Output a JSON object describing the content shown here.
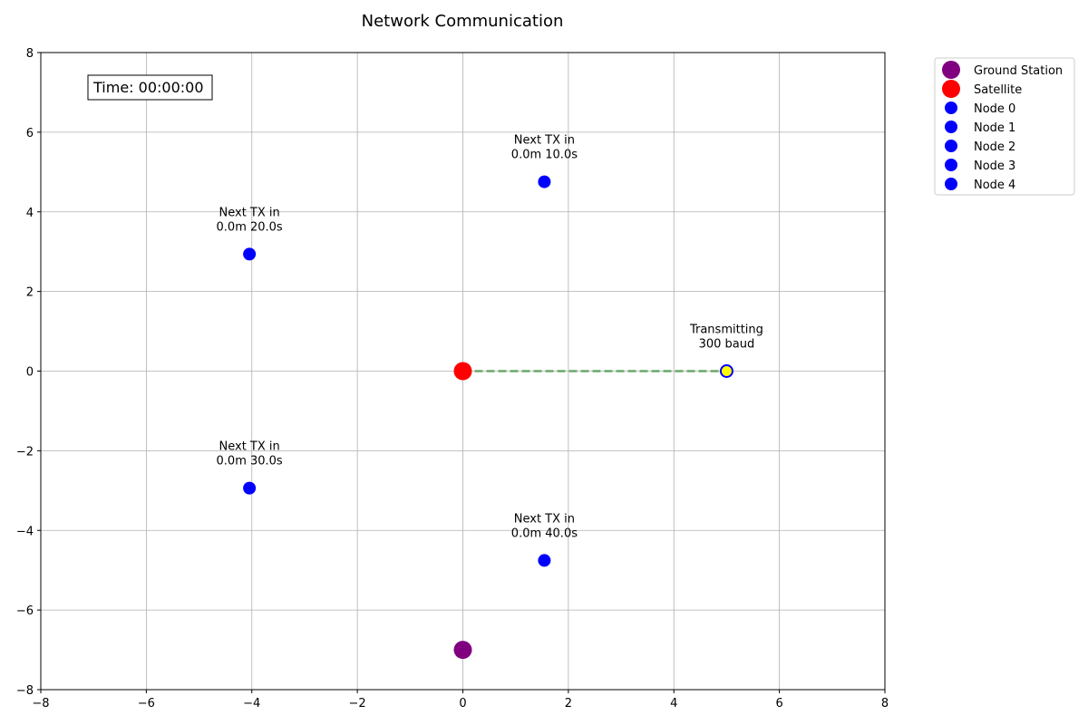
{
  "chart_data": {
    "type": "scatter",
    "title": "Network Communication",
    "xlabel": "",
    "ylabel": "",
    "xlim": [
      -8,
      8
    ],
    "ylim": [
      -8,
      8
    ],
    "xticks": [
      -8,
      -6,
      -4,
      -2,
      0,
      2,
      4,
      6,
      8
    ],
    "yticks": [
      -8,
      -6,
      -4,
      -2,
      0,
      2,
      4,
      6,
      8
    ],
    "grid": true,
    "time_label": "Time: 00:00:00",
    "legend_position": "outside-top-right",
    "series": [
      {
        "name": "Ground Station",
        "color": "#800080",
        "x": [
          0
        ],
        "y": [
          -7
        ]
      },
      {
        "name": "Satellite",
        "color": "#ff0000",
        "x": [
          0
        ],
        "y": [
          0
        ]
      },
      {
        "name": "Node 0",
        "color": "#0000ff",
        "x": [
          5
        ],
        "y": [
          0
        ]
      },
      {
        "name": "Node 1",
        "color": "#0000ff",
        "x": [
          1.545
        ],
        "y": [
          4.755
        ]
      },
      {
        "name": "Node 2",
        "color": "#0000ff",
        "x": [
          -4.045
        ],
        "y": [
          2.939
        ]
      },
      {
        "name": "Node 3",
        "color": "#0000ff",
        "x": [
          -4.045
        ],
        "y": [
          -2.939
        ]
      },
      {
        "name": "Node 4",
        "color": "#0000ff",
        "x": [
          1.545
        ],
        "y": [
          -4.755
        ]
      }
    ],
    "transmitting_node_color": "#ffff00",
    "link": {
      "from": [
        0,
        0
      ],
      "to": [
        5,
        0
      ],
      "color": "#6aa86a",
      "style": "dashed"
    },
    "annotations": [
      {
        "lines": [
          "Transmitting",
          "300 baud"
        ],
        "x": 5,
        "y": 0
      },
      {
        "lines": [
          "Next TX in",
          "0.0m 10.0s"
        ],
        "x": 1.545,
        "y": 4.755
      },
      {
        "lines": [
          "Next TX in",
          "0.0m 20.0s"
        ],
        "x": -4.045,
        "y": 2.939
      },
      {
        "lines": [
          "Next TX in",
          "0.0m 30.0s"
        ],
        "x": -4.045,
        "y": -2.939
      },
      {
        "lines": [
          "Next TX in",
          "0.0m 40.0s"
        ],
        "x": 1.545,
        "y": -4.755
      }
    ]
  }
}
